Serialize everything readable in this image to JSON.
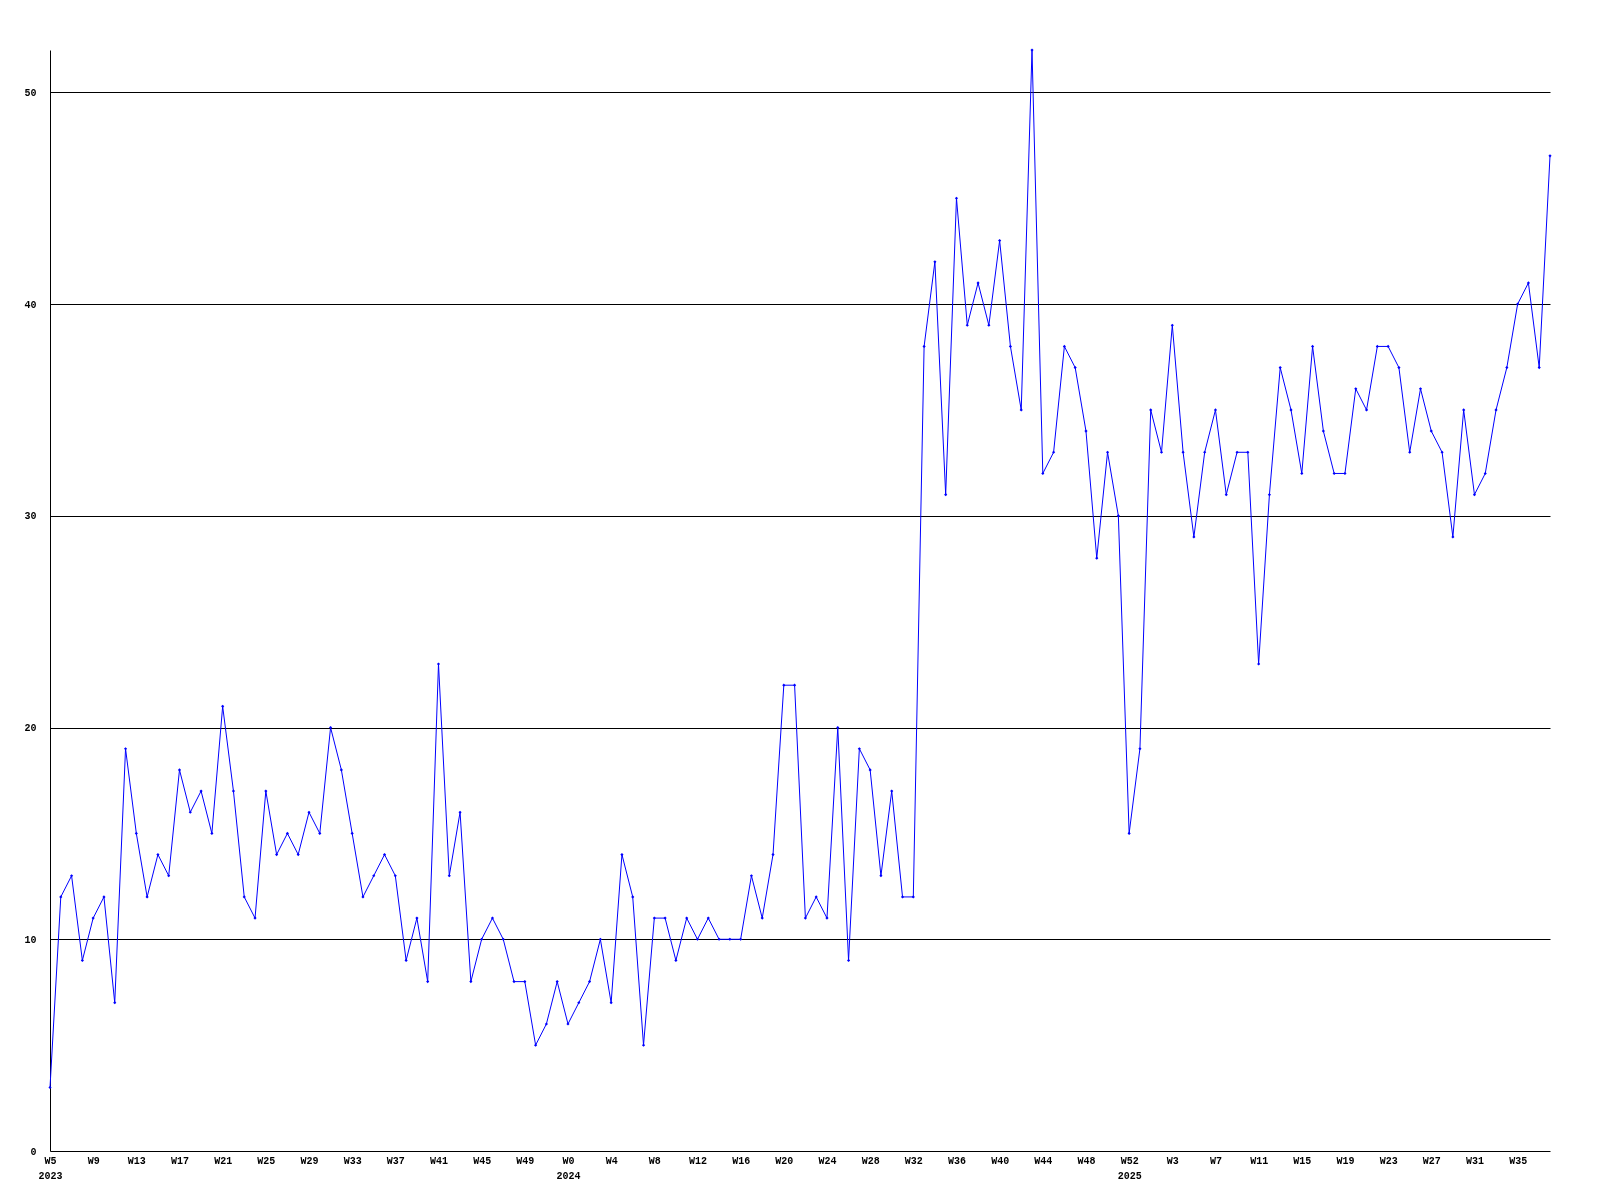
{
  "chart_data": {
    "type": "line",
    "categories": [
      "W5\n2023",
      null,
      null,
      null,
      "W9",
      null,
      null,
      null,
      "W13",
      null,
      null,
      null,
      "W17",
      null,
      null,
      null,
      "W21",
      null,
      null,
      null,
      "W25",
      null,
      null,
      null,
      "W29",
      null,
      null,
      null,
      "W33",
      null,
      null,
      null,
      "W37",
      null,
      null,
      null,
      "W41",
      null,
      null,
      null,
      "W45",
      null,
      null,
      null,
      "W49",
      null,
      null,
      null,
      "W0\n2024",
      null,
      null,
      null,
      "W4",
      null,
      null,
      null,
      "W8",
      null,
      null,
      null,
      "W12",
      null,
      null,
      null,
      "W16",
      null,
      null,
      null,
      "W20",
      null,
      null,
      null,
      "W24",
      null,
      null,
      null,
      "W28",
      null,
      null,
      null,
      "W32",
      null,
      null,
      null,
      "W36",
      null,
      null,
      null,
      "W40",
      null,
      null,
      null,
      "W44",
      null,
      null,
      null,
      "W48",
      null,
      null,
      null,
      "W52\n2025",
      null,
      null,
      null,
      "W3",
      null,
      null,
      null,
      "W7",
      null,
      null,
      null,
      "W11",
      null,
      null,
      null,
      "W15",
      null,
      null,
      null,
      "W19",
      null,
      null,
      null,
      "W23",
      null,
      null,
      null,
      "W27",
      null,
      null,
      null,
      "W31",
      null,
      null,
      null,
      "W35",
      null,
      null,
      null
    ],
    "series": [
      {
        "color": "#0000ff",
        "values": [
          3,
          12,
          13,
          9,
          11,
          12,
          7,
          19,
          15,
          12,
          14,
          13,
          18,
          16,
          17,
          15,
          21,
          17,
          12,
          11,
          17,
          14,
          15,
          14,
          16,
          15,
          20,
          18,
          15,
          12,
          13,
          14,
          13,
          9,
          11,
          8,
          23,
          13,
          16,
          8,
          10,
          11,
          10,
          8,
          8,
          5,
          6,
          8,
          6,
          7,
          8,
          10,
          7,
          14,
          12,
          5,
          11,
          11,
          9,
          11,
          10,
          11,
          10,
          10,
          10,
          13,
          11,
          14,
          22,
          22,
          11,
          12,
          11,
          20,
          9,
          19,
          18,
          13,
          17,
          12,
          12,
          38,
          42,
          31,
          45,
          39,
          41,
          39,
          43,
          38,
          35,
          52,
          32,
          33,
          38,
          37,
          34,
          28,
          33,
          30,
          15,
          19,
          35,
          33,
          39,
          33,
          29,
          33,
          35,
          31,
          33,
          33,
          23,
          31,
          37,
          35,
          32,
          38,
          34,
          32,
          32,
          36,
          35,
          38,
          38,
          37,
          33,
          36,
          34,
          33,
          29,
          35,
          31,
          32,
          35,
          37,
          40,
          41,
          37,
          47
        ]
      }
    ],
    "ylim": [
      0,
      52
    ],
    "yticks": [
      0,
      10,
      20,
      30,
      40,
      50
    ],
    "grid": "y",
    "marker": "diamond",
    "line_style": "solid"
  }
}
